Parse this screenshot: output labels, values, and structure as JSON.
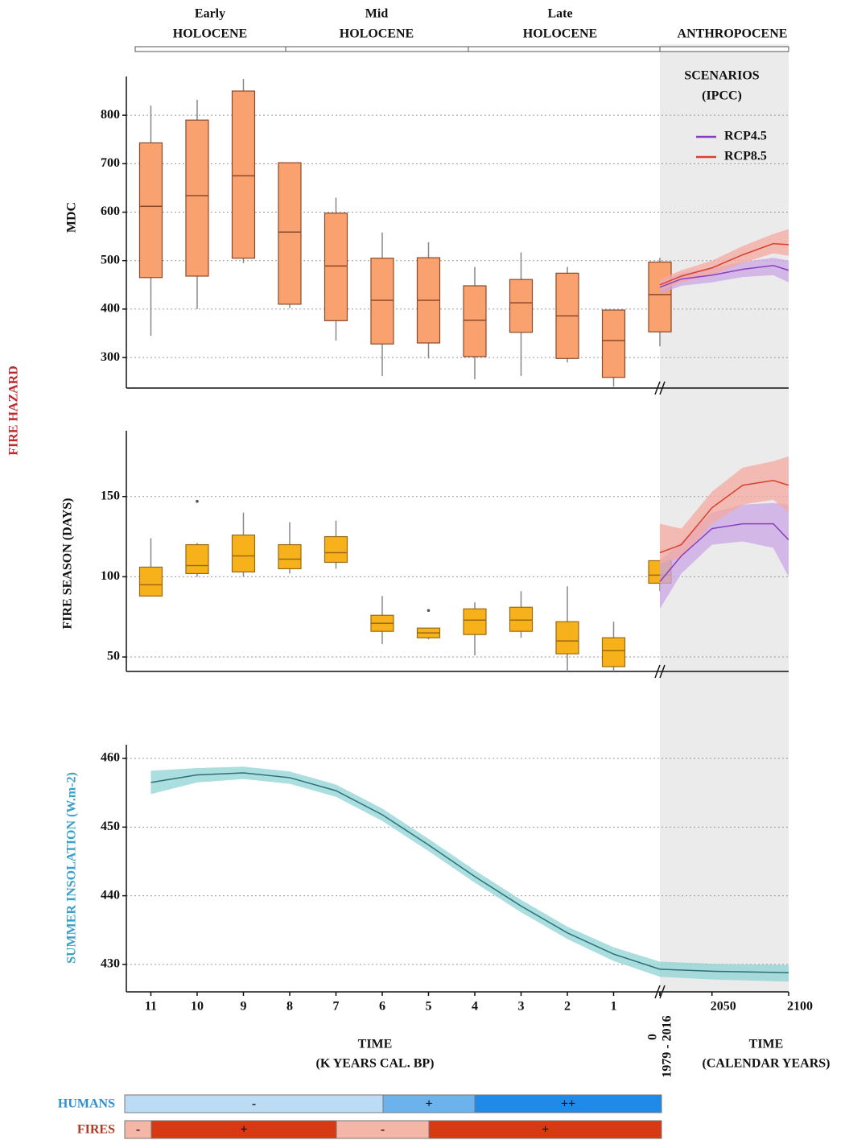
{
  "periods": [
    {
      "lines": [
        "Early",
        "HOLOCENE"
      ]
    },
    {
      "lines": [
        "Mid",
        "HOLOCENE"
      ]
    },
    {
      "lines": [
        "Late",
        "HOLOCENE"
      ]
    },
    {
      "lines": [
        "ANTHROPOCENE"
      ]
    }
  ],
  "group_label": "FIRE HAZARD",
  "humans": {
    "label": "HUMANS",
    "segments": [
      "-",
      "+",
      "++"
    ]
  },
  "fires": {
    "label": "FIRES",
    "segments": [
      "-",
      "+",
      "-",
      "+"
    ]
  },
  "chart_data": [
    {
      "type": "box",
      "ylabel": "MDC",
      "color": "#f9a16f",
      "edge": "#8a4a2a",
      "x": [
        11,
        10,
        9,
        8,
        7,
        6,
        5,
        4,
        3,
        2,
        1,
        0
      ],
      "low": [
        345,
        400,
        495,
        402,
        335,
        262,
        298,
        255,
        262,
        290,
        240,
        323
      ],
      "q1": [
        465,
        468,
        505,
        410,
        376,
        328,
        330,
        302,
        352,
        298,
        259,
        353
      ],
      "median": [
        612,
        634,
        675,
        559,
        489,
        418,
        418,
        377,
        413,
        386,
        335,
        430
      ],
      "q3": [
        743,
        790,
        850,
        702,
        598,
        505,
        506,
        448,
        461,
        474,
        398,
        497
      ],
      "high": [
        820,
        832,
        875,
        702,
        630,
        558,
        538,
        487,
        517,
        487,
        398,
        506
      ],
      "xlim": [
        11.53,
        0
      ],
      "x2lim": [
        2016,
        2100
      ],
      "ylim": [
        237,
        880
      ],
      "yticks": [
        300,
        400,
        500,
        600,
        700,
        800
      ],
      "grid": true,
      "legend_title": [
        "SCENARIOS",
        "(IPCC)"
      ],
      "scenarios": [
        {
          "name": "RCP4.5",
          "color": "#8a3fbf",
          "band": "#c9a6e6",
          "x": [
            2016,
            2030,
            2050,
            2070,
            2090,
            2100
          ],
          "values": [
            445,
            462,
            470,
            482,
            490,
            480
          ],
          "lower": [
            432,
            448,
            455,
            466,
            470,
            455
          ],
          "upper": [
            458,
            474,
            485,
            497,
            506,
            500
          ]
        },
        {
          "name": "RCP8.5",
          "color": "#d9402e",
          "band": "#f4a9a0",
          "x": [
            2016,
            2030,
            2050,
            2070,
            2090,
            2100
          ],
          "values": [
            450,
            468,
            485,
            512,
            535,
            533
          ],
          "lower": [
            438,
            455,
            470,
            495,
            515,
            510
          ],
          "upper": [
            462,
            480,
            500,
            530,
            555,
            565
          ]
        }
      ]
    },
    {
      "type": "box",
      "ylabel": "FIRE SEASON (DAYS)",
      "color": "#f7b21b",
      "edge": "#9a6a10",
      "x": [
        11,
        10,
        9,
        8,
        7,
        6,
        5,
        4,
        3,
        2,
        1,
        0
      ],
      "low": [
        88,
        100,
        100,
        102,
        105,
        58,
        61,
        51,
        62,
        41,
        41,
        91
      ],
      "q1": [
        88,
        102,
        103,
        105,
        109,
        66,
        62,
        64,
        66,
        52,
        44,
        96
      ],
      "median": [
        95,
        107,
        113,
        111,
        115,
        71,
        65,
        73,
        73,
        60,
        54,
        101
      ],
      "q3": [
        106,
        120,
        126,
        120,
        125,
        76,
        68,
        80,
        81,
        72,
        62,
        110
      ],
      "high": [
        124,
        121,
        140,
        134,
        135,
        88,
        68,
        84,
        91,
        94,
        72,
        110
      ],
      "outliers": [
        [],
        [
          147
        ],
        [],
        [],
        [],
        [],
        [
          79
        ],
        [],
        [],
        [],
        [],
        []
      ],
      "xlim": [
        11.53,
        0
      ],
      "x2lim": [
        2016,
        2100
      ],
      "ylim": [
        41,
        191
      ],
      "yticks": [
        50,
        100,
        150
      ],
      "grid": true,
      "scenarios": [
        {
          "color": "#8a3fbf",
          "band": "#c9a6e6",
          "x": [
            2016,
            2030,
            2050,
            2070,
            2090,
            2100
          ],
          "values": [
            97,
            113,
            130,
            133,
            133,
            123
          ],
          "lower": [
            80,
            102,
            120,
            122,
            118,
            100
          ],
          "upper": [
            110,
            122,
            140,
            145,
            146,
            145
          ]
        },
        {
          "color": "#d9402e",
          "band": "#f4a9a0",
          "x": [
            2016,
            2030,
            2050,
            2070,
            2090,
            2100
          ],
          "values": [
            115,
            120,
            143,
            157,
            160,
            157
          ],
          "lower": [
            108,
            112,
            133,
            145,
            148,
            140
          ],
          "upper": [
            133,
            130,
            153,
            168,
            172,
            175
          ]
        }
      ]
    },
    {
      "type": "line",
      "ylabel": "SUMMER INSOLATION (W.m-2)",
      "xlabel": [
        "TIME",
        "(K YEARS CAL. BP)"
      ],
      "x2label": [
        "TIME",
        "(CALENDAR YEARS)"
      ],
      "xlim": [
        11.53,
        0
      ],
      "x2lim": [
        2016,
        2100
      ],
      "xticks": [
        11,
        10,
        9,
        8,
        7,
        6,
        5,
        4,
        3,
        2,
        1,
        0
      ],
      "x2ticks": [
        {
          "value": 2016,
          "label": "1979 - 2016"
        },
        2050,
        2100
      ],
      "ylim": [
        426,
        462
      ],
      "yticks": [
        430,
        440,
        450,
        460
      ],
      "grid": true,
      "series": [
        {
          "color": "#2f6f7a",
          "band": "#8fd3d3",
          "x": [
            11,
            10,
            9,
            8,
            7,
            6,
            5,
            4,
            3,
            2,
            1,
            0
          ],
          "values": [
            456.5,
            457.6,
            457.9,
            457.2,
            455.3,
            451.8,
            447.4,
            442.8,
            438.5,
            434.6,
            431.5,
            429.3
          ],
          "lower": [
            454.8,
            456.5,
            457.0,
            456.3,
            454.4,
            450.9,
            446.5,
            441.9,
            437.6,
            433.7,
            430.5,
            428.2
          ],
          "upper": [
            458.2,
            458.6,
            458.8,
            458.1,
            456.2,
            452.7,
            448.3,
            443.7,
            439.4,
            435.5,
            432.5,
            430.4
          ]
        },
        {
          "axis": "x2",
          "color": "#2f6f7a",
          "band": "#8fd3d3",
          "x": [
            2016,
            2050,
            2100
          ],
          "values": [
            429.3,
            429.0,
            428.8
          ],
          "lower": [
            428.2,
            427.8,
            427.5
          ],
          "upper": [
            430.4,
            430.1,
            429.9
          ]
        }
      ]
    }
  ]
}
